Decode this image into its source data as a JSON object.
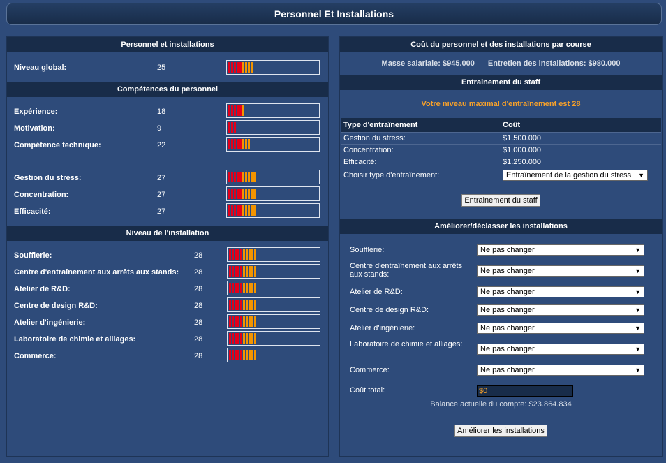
{
  "page_title": "Personnel Et Installations",
  "left": {
    "section1_title": "Personnel et installations",
    "overall": {
      "label": "Niveau global:",
      "value": "25",
      "level": 25
    },
    "section2_title": "Compétences du personnel",
    "skills": [
      {
        "label": "Expérience:",
        "value": "18",
        "level": 18
      },
      {
        "label": "Motivation:",
        "value": "9",
        "level": 9
      },
      {
        "label": "Compétence technique:",
        "value": "22",
        "level": 22
      }
    ],
    "skills2": [
      {
        "label": "Gestion du stress:",
        "value": "27",
        "level": 27
      },
      {
        "label": "Concentration:",
        "value": "27",
        "level": 27
      },
      {
        "label": "Efficacité:",
        "value": "27",
        "level": 27
      }
    ],
    "section3_title": "Niveau de l'installation",
    "facilities": [
      {
        "label": "Soufflerie:",
        "value": "28",
        "level": 28
      },
      {
        "label": "Centre d'entraînement aux arrêts aux stands:",
        "value": "28",
        "level": 28
      },
      {
        "label": "Atelier de R&D:",
        "value": "28",
        "level": 28
      },
      {
        "label": "Centre de design R&D:",
        "value": "28",
        "level": 28
      },
      {
        "label": "Atelier d'ingénierie:",
        "value": "28",
        "level": 28
      },
      {
        "label": "Laboratoire de chimie et alliages:",
        "value": "28",
        "level": 28
      },
      {
        "label": "Commerce:",
        "value": "28",
        "level": 28
      }
    ]
  },
  "right": {
    "cost_title": "Coût du personnel et des installations par course",
    "salary": "Masse salariale: $945.000",
    "maintenance": "Entretien des installations: $980.000",
    "training_title": "Entrainement du staff",
    "max_training": "Votre niveau maximal d'entraînement est 28",
    "table_headers": [
      "Type d'entraînement",
      "Coût"
    ],
    "table_rows": [
      [
        "Gestion du stress:",
        "$1.500.000"
      ],
      [
        "Concentration:",
        "$1.000.000"
      ],
      [
        "Efficacité:",
        "$1.250.000"
      ]
    ],
    "choose_label": "Choisir type d'entraînement:",
    "choose_value": "Entraînement de la gestion du stress",
    "train_button": "Entrainement du staff",
    "upgrade_title": "Améliorer/déclasser les installations",
    "upgrades": [
      {
        "label": "Soufflerie:",
        "value": "Ne pas changer"
      },
      {
        "label": "Centre d'entraînement aux arrêts aux stands:",
        "value": "Ne pas changer"
      },
      {
        "label": "Atelier de R&D:",
        "value": "Ne pas changer"
      },
      {
        "label": "Centre de design R&D:",
        "value": "Ne pas changer"
      },
      {
        "label": "Atelier d'ingénierie:",
        "value": "Ne pas changer"
      },
      {
        "label": "Laboratoire de chimie et alliages:",
        "value": "Ne pas changer"
      },
      {
        "label": "Commerce:",
        "value": "Ne pas changer"
      }
    ],
    "total_label": "Coût total:",
    "total_value": "$0",
    "balance": "Balance actuelle du compte: $23.864.834",
    "upgrade_button": "Améliorer les installations"
  },
  "colors": {
    "bar_red": "#e3001a",
    "bar_orange": "#f39400",
    "accent_orange": "#f7a12a"
  }
}
